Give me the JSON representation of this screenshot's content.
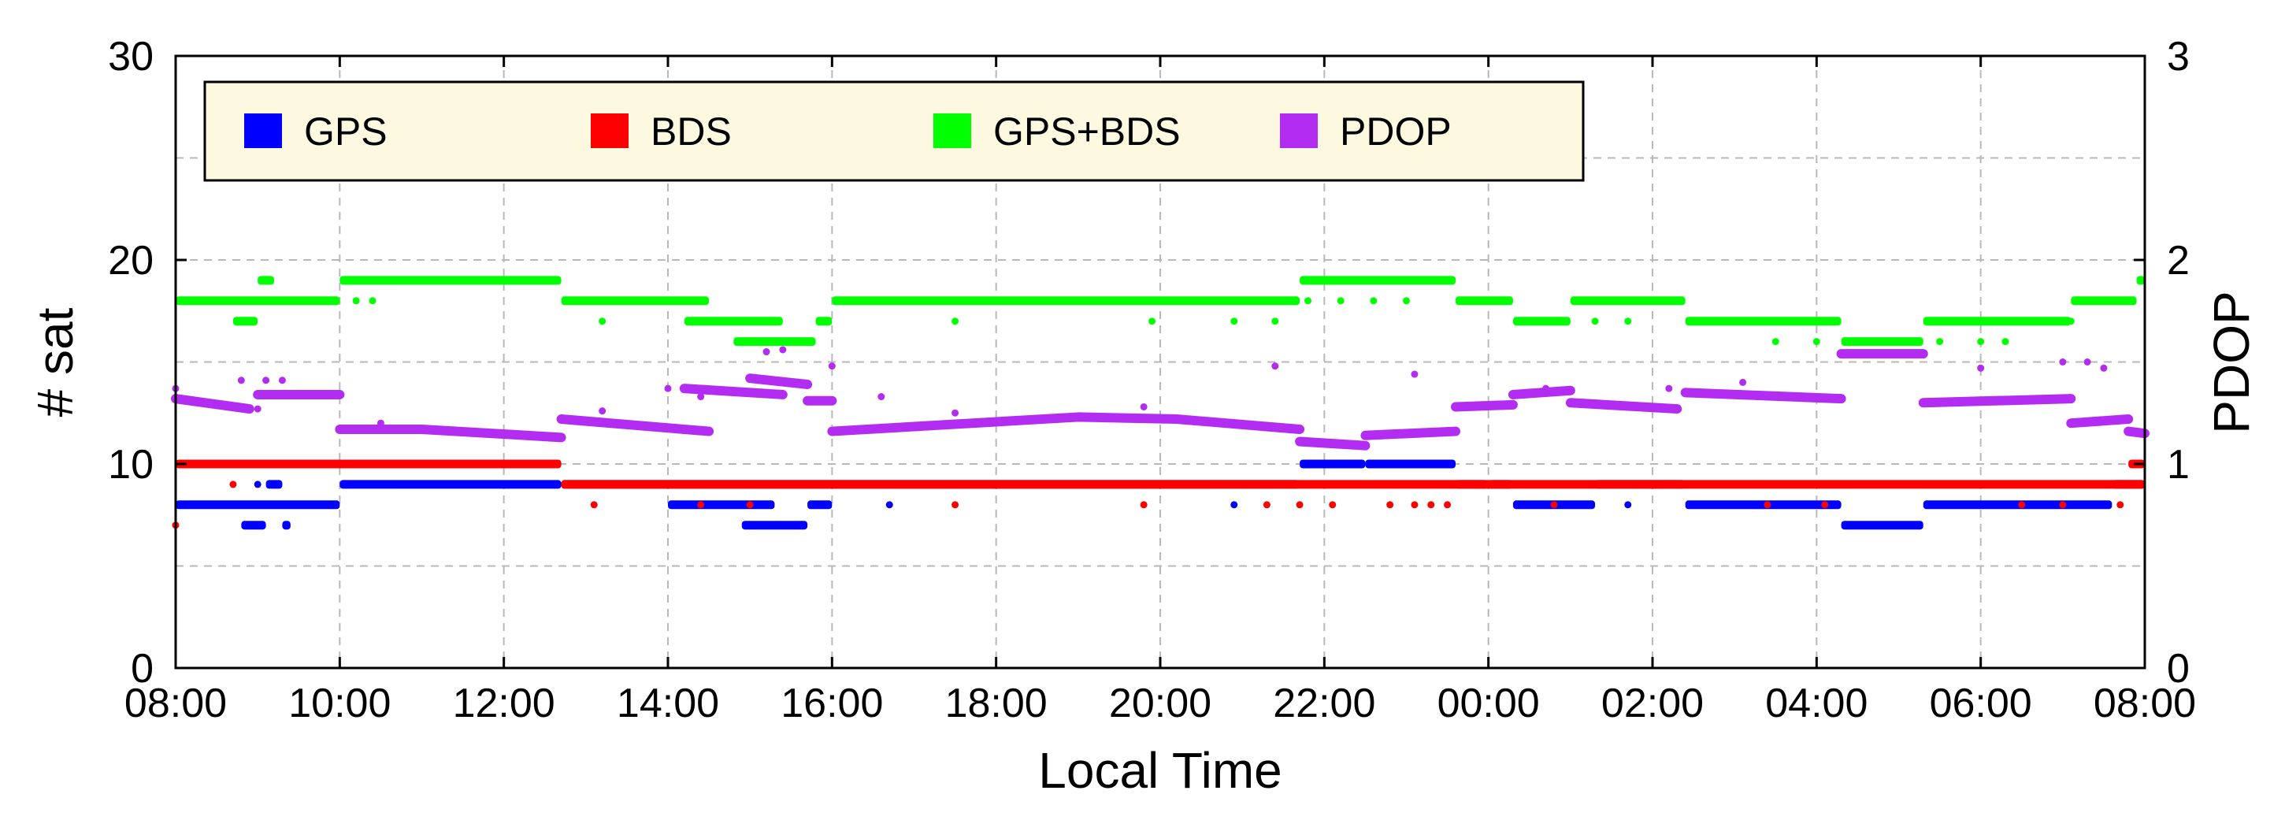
{
  "chart_data": {
    "type": "scatter",
    "xlabel": "Local Time",
    "ylabel": "# sat",
    "y2label": "PDOP",
    "x_domain_hours": [
      0,
      24
    ],
    "ylim": [
      0,
      30
    ],
    "y2lim": [
      0,
      3
    ],
    "x_ticks": [
      {
        "h": 0,
        "label": "08:00"
      },
      {
        "h": 2,
        "label": "10:00"
      },
      {
        "h": 4,
        "label": "12:00"
      },
      {
        "h": 6,
        "label": "14:00"
      },
      {
        "h": 8,
        "label": "16:00"
      },
      {
        "h": 10,
        "label": "18:00"
      },
      {
        "h": 12,
        "label": "20:00"
      },
      {
        "h": 14,
        "label": "22:00"
      },
      {
        "h": 16,
        "label": "00:00"
      },
      {
        "h": 18,
        "label": "02:00"
      },
      {
        "h": 20,
        "label": "04:00"
      },
      {
        "h": 22,
        "label": "06:00"
      },
      {
        "h": 24,
        "label": "08:00"
      }
    ],
    "y_ticks": [
      {
        "v": 0,
        "label": "0"
      },
      {
        "v": 10,
        "label": "10"
      },
      {
        "v": 20,
        "label": "20"
      },
      {
        "v": 30,
        "label": "30"
      }
    ],
    "y2_ticks": [
      {
        "v": 0,
        "label": "0"
      },
      {
        "v": 1,
        "label": "1"
      },
      {
        "v": 2,
        "label": "2"
      },
      {
        "v": 3,
        "label": "3"
      }
    ],
    "grid": true,
    "legend_position": "top-left",
    "series": [
      {
        "name": "GPS",
        "color": "#0000ff",
        "axis": "left",
        "segments": [
          [
            0.0,
            2.0,
            8
          ],
          [
            0.8,
            1.1,
            7
          ],
          [
            1.1,
            1.3,
            9
          ],
          [
            1.3,
            1.4,
            7
          ],
          [
            2.0,
            4.7,
            9
          ],
          [
            4.7,
            13.7,
            9
          ],
          [
            13.7,
            14.5,
            10
          ],
          [
            14.5,
            15.6,
            10
          ],
          [
            15.6,
            16.0,
            9
          ],
          [
            16.0,
            16.3,
            9
          ],
          [
            16.3,
            17.3,
            8
          ],
          [
            17.3,
            18.4,
            9
          ],
          [
            18.4,
            20.3,
            8
          ],
          [
            20.3,
            21.3,
            7
          ],
          [
            21.3,
            23.6,
            8
          ],
          [
            23.6,
            24.0,
            9
          ]
        ],
        "extra_ranges": [
          [
            6.0,
            7.3,
            8
          ],
          [
            6.9,
            7.7,
            7
          ],
          [
            7.7,
            8.0,
            8
          ]
        ],
        "dots": [
          [
            1.0,
            9
          ],
          [
            8.7,
            8
          ],
          [
            12.9,
            8
          ],
          [
            16.9,
            8
          ],
          [
            17.7,
            8
          ]
        ]
      },
      {
        "name": "BDS",
        "color": "#ff0000",
        "axis": "left",
        "segments": [
          [
            0.0,
            4.7,
            10
          ],
          [
            4.7,
            24.0,
            9
          ],
          [
            23.8,
            24.0,
            10
          ]
        ],
        "dots": [
          [
            0.0,
            7
          ],
          [
            0.7,
            9
          ],
          [
            5.1,
            8
          ],
          [
            6.4,
            8
          ],
          [
            7.0,
            8
          ],
          [
            9.5,
            8
          ],
          [
            11.8,
            8
          ],
          [
            13.3,
            8
          ],
          [
            13.7,
            8
          ],
          [
            14.1,
            8
          ],
          [
            14.8,
            8
          ],
          [
            15.1,
            8
          ],
          [
            15.3,
            8
          ],
          [
            15.5,
            8
          ],
          [
            16.8,
            8
          ],
          [
            19.4,
            8
          ],
          [
            20.1,
            8
          ],
          [
            22.5,
            8
          ],
          [
            23.0,
            8
          ],
          [
            23.7,
            8
          ]
        ]
      },
      {
        "name": "GPS+BDS",
        "color": "#00ff00",
        "axis": "left",
        "segments": [
          [
            0.0,
            2.0,
            18
          ],
          [
            1.0,
            1.2,
            19
          ],
          [
            0.7,
            1.0,
            17
          ],
          [
            2.0,
            4.7,
            19
          ],
          [
            4.7,
            6.5,
            18
          ],
          [
            6.2,
            7.4,
            17
          ],
          [
            6.8,
            7.8,
            16
          ],
          [
            7.8,
            8.0,
            17
          ],
          [
            8.0,
            13.7,
            18
          ],
          [
            13.7,
            15.6,
            19
          ],
          [
            15.6,
            16.3,
            18
          ],
          [
            16.3,
            17.0,
            17
          ],
          [
            17.0,
            18.4,
            18
          ],
          [
            18.4,
            20.3,
            17
          ],
          [
            20.3,
            21.3,
            16
          ],
          [
            21.3,
            23.1,
            17
          ],
          [
            23.1,
            23.9,
            18
          ],
          [
            23.9,
            24.0,
            19
          ]
        ],
        "dots": [
          [
            2.2,
            18
          ],
          [
            2.4,
            18
          ],
          [
            5.2,
            17
          ],
          [
            9.5,
            17
          ],
          [
            11.9,
            17
          ],
          [
            12.9,
            17
          ],
          [
            13.4,
            17
          ],
          [
            13.8,
            18
          ],
          [
            14.2,
            18
          ],
          [
            14.6,
            18
          ],
          [
            15.0,
            18
          ],
          [
            17.3,
            17
          ],
          [
            17.7,
            17
          ],
          [
            19.5,
            16
          ],
          [
            20.0,
            16
          ],
          [
            21.5,
            16
          ],
          [
            22.0,
            16
          ],
          [
            22.3,
            16
          ],
          [
            23.1,
            17
          ]
        ]
      },
      {
        "name": "PDOP",
        "color": "#b22cf2",
        "axis": "right",
        "curves": [
          [
            [
              0.0,
              1.32
            ],
            [
              0.9,
              1.27
            ]
          ],
          [
            [
              1.0,
              1.34
            ],
            [
              2.0,
              1.34
            ]
          ],
          [
            [
              2.0,
              1.17
            ],
            [
              3.0,
              1.17
            ],
            [
              4.7,
              1.13
            ]
          ],
          [
            [
              4.7,
              1.22
            ],
            [
              6.5,
              1.16
            ]
          ],
          [
            [
              6.2,
              1.37
            ],
            [
              7.4,
              1.34
            ]
          ],
          [
            [
              7.0,
              1.42
            ],
            [
              7.7,
              1.39
            ]
          ],
          [
            [
              7.7,
              1.31
            ],
            [
              8.0,
              1.31
            ]
          ],
          [
            [
              8.0,
              1.16
            ],
            [
              11.0,
              1.23
            ],
            [
              12.2,
              1.22
            ],
            [
              13.7,
              1.17
            ]
          ],
          [
            [
              13.7,
              1.11
            ],
            [
              14.5,
              1.09
            ]
          ],
          [
            [
              14.5,
              1.14
            ],
            [
              15.6,
              1.16
            ]
          ],
          [
            [
              15.6,
              1.28
            ],
            [
              16.3,
              1.29
            ]
          ],
          [
            [
              16.3,
              1.34
            ],
            [
              17.0,
              1.36
            ]
          ],
          [
            [
              17.0,
              1.3
            ],
            [
              18.3,
              1.27
            ]
          ],
          [
            [
              18.4,
              1.35
            ],
            [
              20.3,
              1.32
            ]
          ],
          [
            [
              20.3,
              1.54
            ],
            [
              21.3,
              1.54
            ]
          ],
          [
            [
              21.3,
              1.3
            ],
            [
              23.1,
              1.32
            ]
          ],
          [
            [
              23.1,
              1.2
            ],
            [
              23.8,
              1.22
            ]
          ],
          [
            [
              23.8,
              1.16
            ],
            [
              24.0,
              1.15
            ]
          ]
        ],
        "dots": [
          [
            0.0,
            1.37
          ],
          [
            0.8,
            1.41
          ],
          [
            1.1,
            1.41
          ],
          [
            1.3,
            1.41
          ],
          [
            1.0,
            1.27
          ],
          [
            2.5,
            1.2
          ],
          [
            5.2,
            1.26
          ],
          [
            6.0,
            1.37
          ],
          [
            6.4,
            1.33
          ],
          [
            7.2,
            1.55
          ],
          [
            7.4,
            1.56
          ],
          [
            8.0,
            1.48
          ],
          [
            8.6,
            1.33
          ],
          [
            9.5,
            1.25
          ],
          [
            11.8,
            1.28
          ],
          [
            13.4,
            1.48
          ],
          [
            15.1,
            1.44
          ],
          [
            16.7,
            1.37
          ],
          [
            18.2,
            1.37
          ],
          [
            19.1,
            1.4
          ],
          [
            22.0,
            1.47
          ],
          [
            23.0,
            1.5
          ],
          [
            23.3,
            1.5
          ],
          [
            23.5,
            1.47
          ]
        ]
      }
    ]
  }
}
